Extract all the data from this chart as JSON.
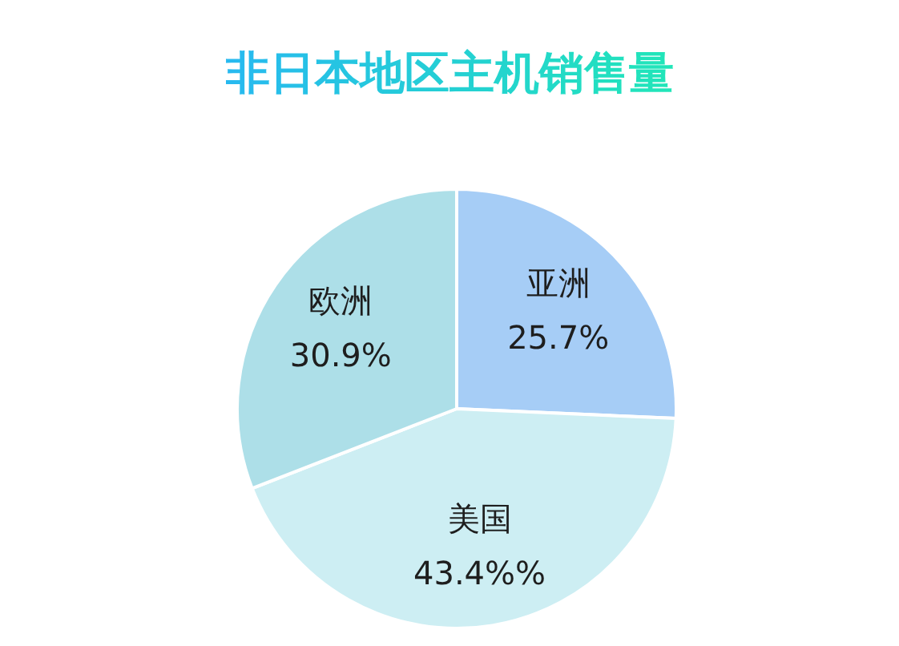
{
  "chart_data": {
    "type": "pie",
    "title": "非日本地区主机销售量",
    "categories": [
      "亚洲",
      "美国",
      "欧洲"
    ],
    "values": [
      25.7,
      43.4,
      30.9
    ],
    "colors": [
      "#a6cdf6",
      "#cdeef3",
      "#addfe8"
    ],
    "value_labels": [
      "25.7%",
      "43.4%%",
      "30.9%"
    ]
  }
}
